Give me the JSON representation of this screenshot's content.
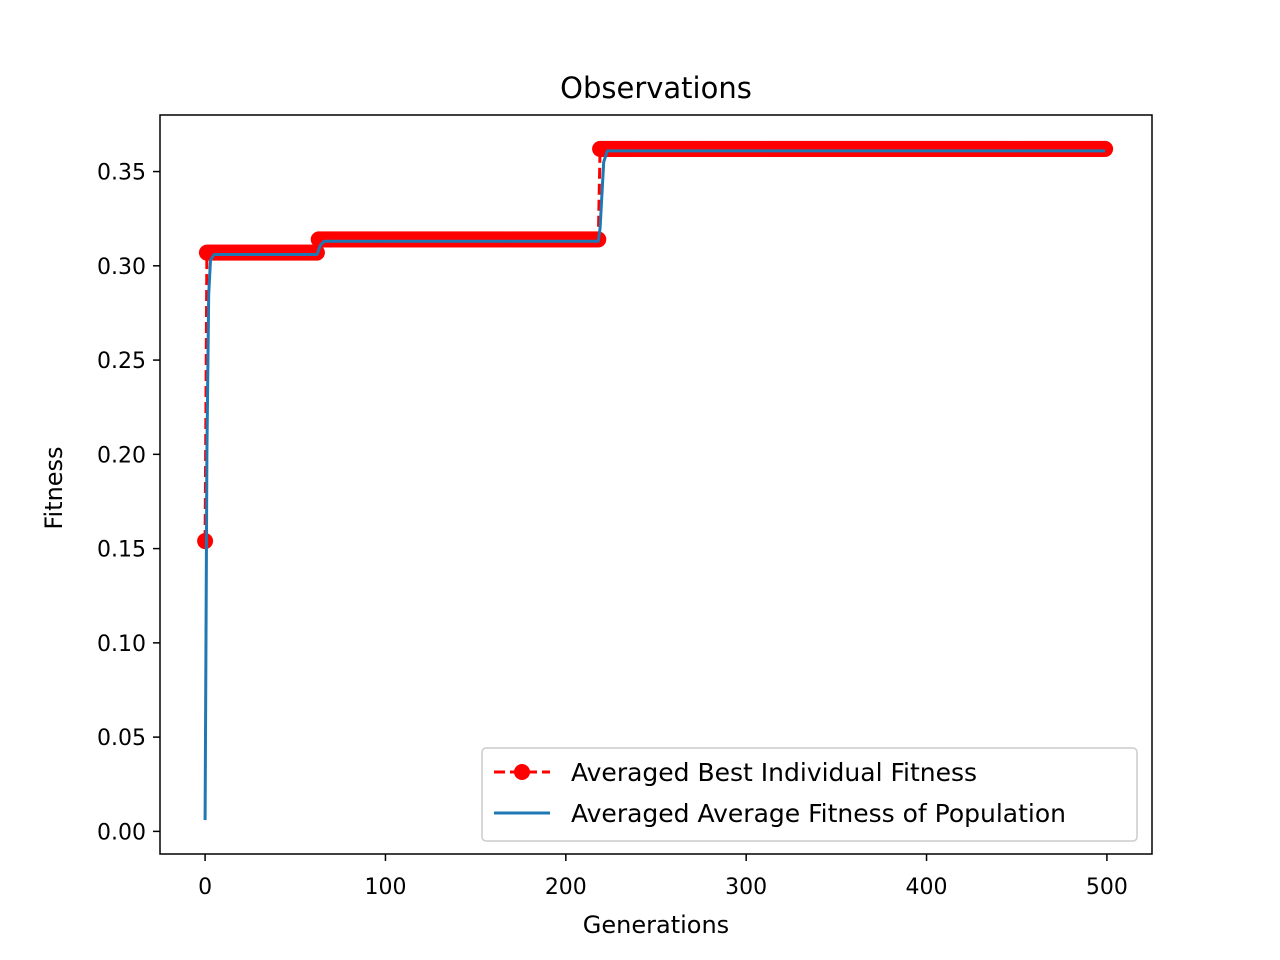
{
  "chart_data": {
    "type": "line",
    "title": "Observations",
    "xlabel": "Generations",
    "ylabel": "Fitness",
    "xlim": [
      -25,
      525
    ],
    "ylim": [
      -0.012,
      0.38
    ],
    "xticks": [
      0,
      100,
      200,
      300,
      400,
      500
    ],
    "xtick_labels": [
      "0",
      "100",
      "200",
      "300",
      "400",
      "500"
    ],
    "yticks": [
      0.0,
      0.05,
      0.1,
      0.15,
      0.2,
      0.25,
      0.3,
      0.35
    ],
    "ytick_labels": [
      "0.00",
      "0.05",
      "0.10",
      "0.15",
      "0.20",
      "0.25",
      "0.30",
      "0.35"
    ],
    "grid": false,
    "legend_position": "lower-right",
    "series": [
      {
        "name": "Averaged Best Individual Fitness",
        "style": "dashed-circle-markers",
        "color": "#ff0000",
        "steps": [
          {
            "x_start": 0,
            "x_end": 0,
            "y": 0.154
          },
          {
            "x_start": 1,
            "x_end": 62,
            "y": 0.307
          },
          {
            "x_start": 63,
            "x_end": 218,
            "y": 0.314
          },
          {
            "x_start": 219,
            "x_end": 499,
            "y": 0.362
          }
        ]
      },
      {
        "name": "Averaged Average Fitness of Population",
        "style": "solid",
        "color": "#1f77b4",
        "points": [
          [
            0,
            0.006
          ],
          [
            1,
            0.2
          ],
          [
            2,
            0.285
          ],
          [
            3,
            0.303
          ],
          [
            5,
            0.306
          ],
          [
            30,
            0.306
          ],
          [
            62,
            0.306
          ],
          [
            64,
            0.311
          ],
          [
            66,
            0.313
          ],
          [
            218,
            0.313
          ],
          [
            219,
            0.32
          ],
          [
            221,
            0.355
          ],
          [
            223,
            0.361
          ],
          [
            499,
            0.361
          ]
        ]
      }
    ]
  }
}
